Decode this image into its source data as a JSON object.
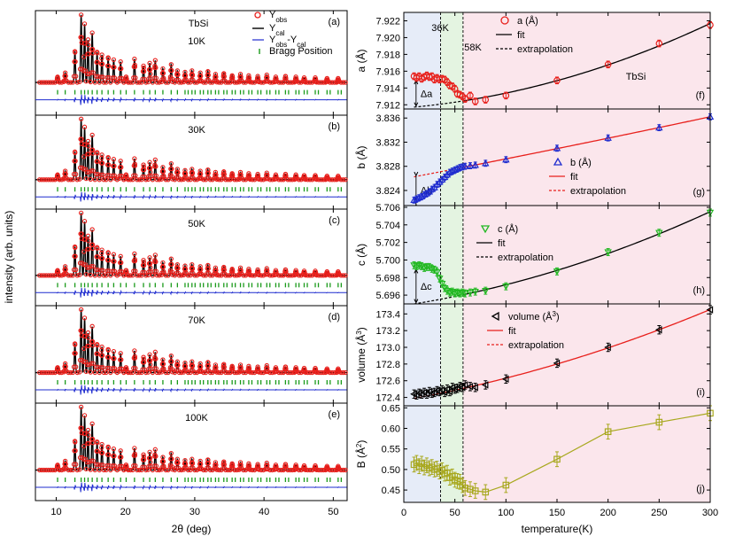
{
  "chart_data": {
    "type": "scatter",
    "title": "TbSi",
    "left_figure": {
      "ylabel": "intensity (arb. units)",
      "xlabel": "2θ (deg)",
      "xlim": [
        7,
        52
      ],
      "xticks": [
        10,
        20,
        30,
        40,
        50
      ],
      "peaks_2theta": [
        10.2,
        11.3,
        12.7,
        13.6,
        14.1,
        14.6,
        15.2,
        15.9,
        16.6,
        17.5,
        18.3,
        19.3,
        20.1,
        21.3,
        22.6,
        23.5,
        24.3,
        25.4,
        26.6,
        27.5,
        28.6,
        29.6,
        30.8,
        31.9,
        33.0,
        34.2,
        35.4,
        36.6,
        37.8,
        39.1,
        40.4,
        41.7,
        43.1,
        44.6,
        45.8,
        47.4,
        49.1,
        50.7
      ],
      "peak_heights": [
        0.08,
        0.14,
        0.45,
        0.98,
        0.85,
        0.62,
        0.72,
        0.44,
        0.4,
        0.36,
        0.33,
        0.3,
        0.08,
        0.34,
        0.24,
        0.28,
        0.32,
        0.2,
        0.26,
        0.17,
        0.15,
        0.17,
        0.14,
        0.16,
        0.12,
        0.13,
        0.1,
        0.12,
        0.1,
        0.09,
        0.11,
        0.08,
        0.09,
        0.08,
        0.07,
        0.07,
        0.06,
        0.06
      ],
      "legend": [
        {
          "symbol": "o",
          "label_main": "Y",
          "label_sub": "obs",
          "color": "#e8201c"
        },
        {
          "symbol": "line",
          "label_main": "Y",
          "label_sub": "cal",
          "color": "#000000"
        },
        {
          "symbol": "line",
          "label_main": "Y",
          "label_sub": "obs",
          "label_mid": "-Y",
          "label_sub2": "cal",
          "color": "#1f2ccf"
        },
        {
          "symbol": "bar",
          "label": "Bragg Position",
          "color": "#1a9a1a"
        }
      ],
      "panels": [
        {
          "letter": "(a)",
          "temperature": "10K",
          "compound": "TbSi"
        },
        {
          "letter": "(b)",
          "temperature": "30K"
        },
        {
          "letter": "(c)",
          "temperature": "50K"
        },
        {
          "letter": "(d)",
          "temperature": "70K"
        },
        {
          "letter": "(e)",
          "temperature": "100K"
        }
      ]
    },
    "right_figure": {
      "xlabel": "temperature(K)",
      "xlim": [
        0,
        300
      ],
      "xticks": [
        0,
        50,
        100,
        150,
        200,
        250,
        300
      ],
      "regions": [
        {
          "from": 0,
          "to": 36,
          "color": "#e6ecf8"
        },
        {
          "from": 36,
          "to": 58,
          "color": "#e4f4e1"
        },
        {
          "from": 58,
          "to": 300,
          "color": "#fbe6ec"
        }
      ],
      "region_labels": [
        "36K",
        "58K"
      ],
      "vlines": [
        36,
        58
      ],
      "temps": [
        10,
        12.5,
        15,
        17.5,
        20,
        22.5,
        25,
        27.5,
        30,
        32.5,
        35,
        37.5,
        40,
        42.5,
        45,
        47.5,
        50,
        52.5,
        55,
        57.5,
        60,
        65,
        70,
        80,
        100,
        150,
        200,
        250,
        300
      ],
      "panels": [
        {
          "letter": "(f)",
          "compound": "TbSi",
          "ylabel_main": "a (Å)",
          "ylim": [
            7.9115,
            7.923
          ],
          "yticks": [
            7.912,
            7.914,
            7.916,
            7.918,
            7.92,
            7.922
          ],
          "ytick_labels": [
            "7.912",
            "7.914",
            "7.916",
            "7.918",
            "7.920",
            "7.922"
          ],
          "marker": "circle",
          "color": "#e8201c",
          "fit_color": "#000000",
          "errbar": 0.0004,
          "values": [
            7.9154,
            7.9152,
            7.9154,
            7.9151,
            7.9153,
            7.9155,
            7.9153,
            7.9154,
            7.915,
            7.9152,
            7.915,
            7.9151,
            7.915,
            7.9147,
            7.9143,
            7.9142,
            7.9139,
            7.9133,
            7.9132,
            7.913,
            7.9127,
            7.9131,
            7.9124,
            7.9126,
            7.9131,
            7.9149,
            7.9168,
            7.9193,
            7.9215
          ],
          "fit_from": 58,
          "extrap_value": 7.9122,
          "delta_label": "Δa",
          "legend": [
            "a (Å)",
            "fit",
            "extrapolation"
          ]
        },
        {
          "letter": "(g)",
          "ylabel_main": "b (Å)",
          "ylim": [
            3.8215,
            3.8375
          ],
          "yticks": [
            3.824,
            3.828,
            3.832,
            3.836
          ],
          "ytick_labels": [
            "3.824",
            "3.828",
            "3.832",
            "3.836"
          ],
          "marker": "triangle-up",
          "color": "#1f2ccf",
          "fit_color": "#e8201c",
          "errbar": 0.0005,
          "values": [
            3.8224,
            3.8226,
            3.8228,
            3.823,
            3.8233,
            3.8235,
            3.8238,
            3.8242,
            3.8245,
            3.825,
            3.8254,
            3.8258,
            3.8262,
            3.8266,
            3.827,
            3.8272,
            3.8274,
            3.8276,
            3.8278,
            3.8279,
            3.828,
            3.8281,
            3.8282,
            3.8285,
            3.8291,
            3.831,
            3.8327,
            3.8344,
            3.8362
          ],
          "fit_from": 58,
          "extrap_value": 3.8263,
          "delta_label": "Δb",
          "legend": [
            "b (Å)",
            "fit",
            "extrapolation"
          ]
        },
        {
          "letter": "(h)",
          "ylabel_main": "c (Å)",
          "ylim": [
            5.695,
            5.7062
          ],
          "yticks": [
            5.696,
            5.698,
            5.7,
            5.702,
            5.704,
            5.706
          ],
          "ytick_labels": [
            "5.696",
            "5.698",
            "5.700",
            "5.702",
            "5.704",
            "5.706"
          ],
          "marker": "triangle-down",
          "color": "#22b822",
          "fit_color": "#000000",
          "errbar": 0.0004,
          "values": [
            5.6994,
            5.6993,
            5.6994,
            5.6993,
            5.6991,
            5.6992,
            5.6992,
            5.699,
            5.6989,
            5.6986,
            5.6979,
            5.6973,
            5.6968,
            5.6965,
            5.6963,
            5.6964,
            5.6962,
            5.6963,
            5.6962,
            5.6963,
            5.6962,
            5.6963,
            5.6964,
            5.6965,
            5.697,
            5.6987,
            5.7009,
            5.7031,
            5.7054
          ],
          "fit_from": 58,
          "extrap_value": 5.6958,
          "delta_label": "Δc",
          "legend": [
            "c (Å)",
            "fit",
            "extrapolation"
          ]
        },
        {
          "letter": "(i)",
          "ylabel_main": "volume (Å",
          "ylabel_sup": "3",
          "ylabel_end": ")",
          "ylim": [
            172.3,
            173.52
          ],
          "yticks": [
            172.4,
            172.6,
            172.8,
            173.0,
            173.2,
            173.4
          ],
          "ytick_labels": [
            "172.4",
            "172.6",
            "172.8",
            "173.0",
            "173.2",
            "173.4"
          ],
          "marker": "triangle-left",
          "color": "#000000",
          "fit_color": "#e8201c",
          "errbar": 0.05,
          "values": [
            172.44,
            172.43,
            172.45,
            172.44,
            172.46,
            172.44,
            172.47,
            172.45,
            172.46,
            172.48,
            172.47,
            172.49,
            172.46,
            172.5,
            172.47,
            172.52,
            172.5,
            172.51,
            172.53,
            172.52,
            172.55,
            172.53,
            172.52,
            172.55,
            172.62,
            172.81,
            173.0,
            173.21,
            173.45
          ],
          "fit_from": 58,
          "extrap_line": true,
          "legend": [
            "volume (Å",
            "fit",
            "extrapolation"
          ],
          "legend_sup": "3"
        },
        {
          "letter": "(j)",
          "ylabel_main": "B (Å",
          "ylabel_sup": "2",
          "ylabel_end": ")",
          "ylim": [
            0.42,
            0.655
          ],
          "yticks": [
            0.45,
            0.5,
            0.55,
            0.6,
            0.65
          ],
          "ytick_labels": [
            "0.45",
            "0.50",
            "0.55",
            "0.60",
            "0.65"
          ],
          "marker": "square",
          "color": "#a8a81e",
          "line_color": "#a8a81e",
          "errbar": 0.018,
          "values": [
            0.512,
            0.516,
            0.508,
            0.514,
            0.505,
            0.51,
            0.503,
            0.506,
            0.5,
            0.502,
            0.495,
            0.498,
            0.49,
            0.492,
            0.48,
            0.483,
            0.475,
            0.472,
            0.47,
            0.462,
            0.455,
            0.452,
            0.448,
            0.445,
            0.462,
            0.525,
            0.592,
            0.615,
            0.637
          ]
        }
      ]
    }
  }
}
